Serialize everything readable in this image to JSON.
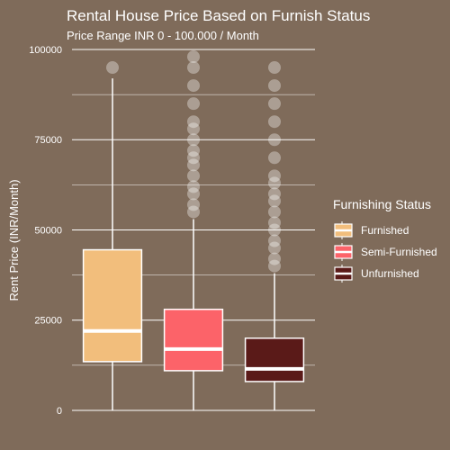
{
  "chart_data": {
    "type": "box",
    "title": "Rental House Price Based on Furnish Status",
    "subtitle": "Price Range INR 0 - 100.000 / Month",
    "xlabel": "",
    "ylabel": "Rent Price (INR/Month)",
    "ylim": [
      -1000,
      100000
    ],
    "yticks": [
      0,
      25000,
      50000,
      75000,
      100000
    ],
    "ytick_labels": [
      "0",
      "25000",
      "50000",
      "75000",
      "100000"
    ],
    "grid": true,
    "legend": {
      "title": "Furnishing Status",
      "position": "right",
      "entries": [
        "Furnished",
        "Semi-Furnished",
        "Unfurnished"
      ]
    },
    "categories": [
      "Furnished",
      "Semi-Furnished",
      "Unfurnished"
    ],
    "series": [
      {
        "name": "Furnished",
        "color": "#f2be7c",
        "whisker_low": 0,
        "q1": 13500,
        "median": 22000,
        "q3": 44500,
        "whisker_high": 92000,
        "outliers": [
          95000
        ]
      },
      {
        "name": "Semi-Furnished",
        "color": "#fc6369",
        "whisker_low": 0,
        "q1": 11000,
        "median": 17000,
        "q3": 28000,
        "whisker_high": 53000,
        "outliers": [
          55000,
          57000,
          60000,
          62000,
          65000,
          68000,
          70000,
          72000,
          75000,
          78000,
          80000,
          85000,
          90000,
          95000,
          98000
        ]
      },
      {
        "name": "Unfurnished",
        "color": "#5a1a18",
        "whisker_low": 0,
        "q1": 8000,
        "median": 11500,
        "q3": 20000,
        "whisker_high": 38000,
        "outliers": [
          40000,
          42000,
          45000,
          47000,
          50000,
          52000,
          55000,
          58000,
          60000,
          63000,
          65000,
          70000,
          75000,
          80000,
          85000,
          90000,
          95000
        ]
      }
    ]
  }
}
